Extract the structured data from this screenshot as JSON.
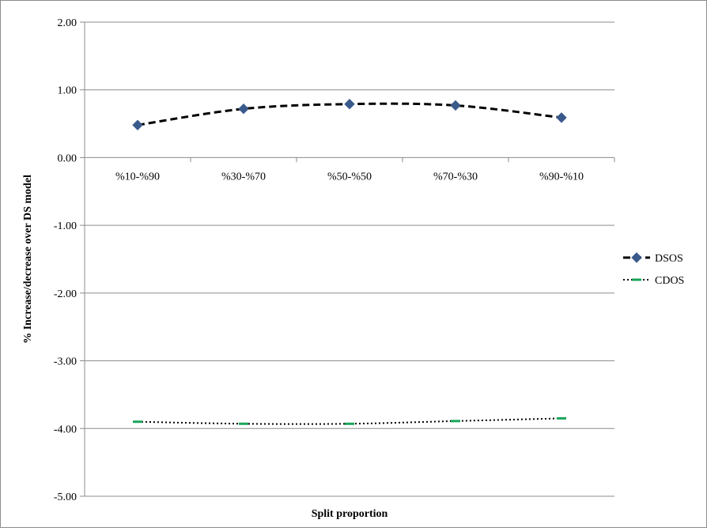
{
  "chart_data": {
    "type": "line",
    "categories": [
      "%10-%90",
      "%30-%70",
      "%50-%50",
      "%70-%30",
      "%90-%10"
    ],
    "series": [
      {
        "name": "DSOS",
        "values": [
          0.48,
          0.72,
          0.79,
          0.77,
          0.59
        ],
        "color": "#000000",
        "marker_color": "#3a5a8c",
        "line_style": "dashed",
        "marker": "diamond"
      },
      {
        "name": "CDOS",
        "values": [
          -3.9,
          -3.93,
          -3.93,
          -3.89,
          -3.85
        ],
        "color": "#000000",
        "marker_color": "#1aa65a",
        "line_style": "dotted",
        "marker": "dash"
      }
    ],
    "title": "",
    "xlabel": "Split proportion",
    "ylabel": "% Increase/decrease over DS model",
    "ylim": [
      -5.0,
      2.0
    ],
    "yticks": [
      "2.00",
      "1.00",
      "0.00",
      "-1.00",
      "-2.00",
      "-3.00",
      "-4.00",
      "-5.00"
    ],
    "grid": true,
    "legend_position": "right"
  }
}
